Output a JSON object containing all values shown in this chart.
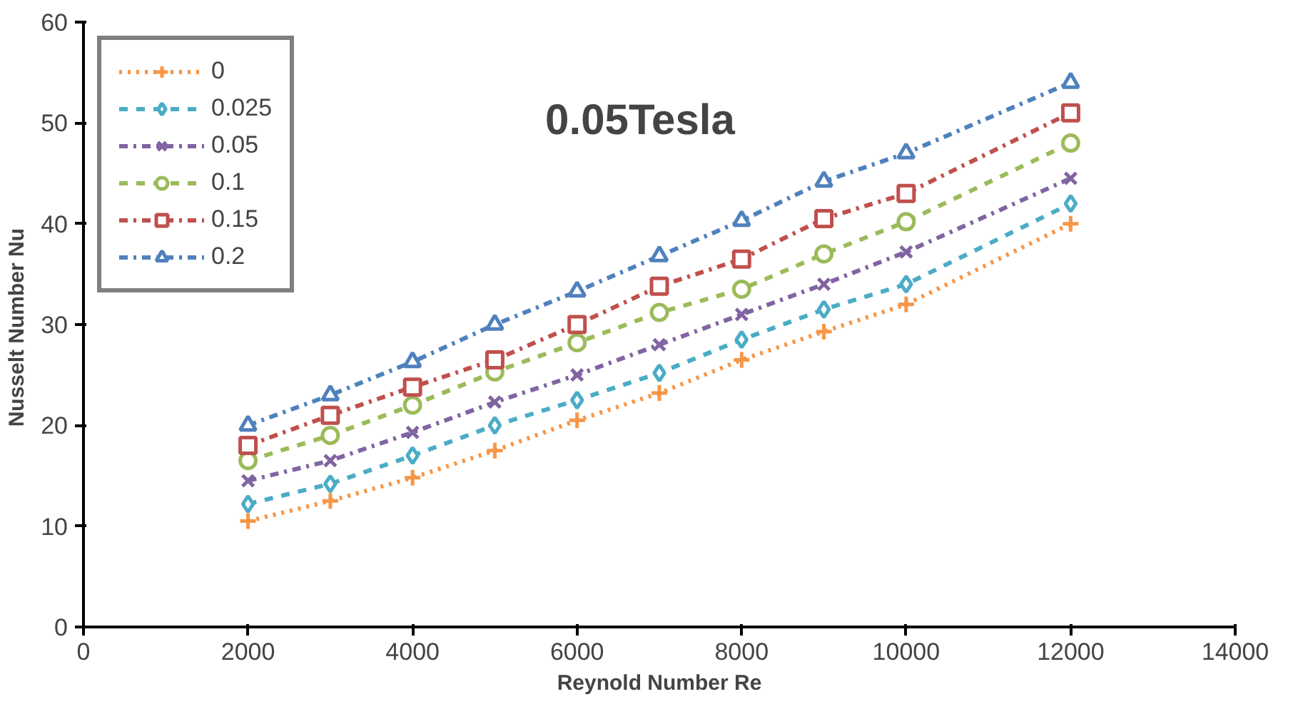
{
  "chart_data": {
    "type": "line",
    "title": "0.05Tesla",
    "xlabel": "Reynold Number Re",
    "ylabel": "Nusselt Number  Nu",
    "x": [
      2000,
      3000,
      4000,
      5000,
      6000,
      7000,
      8000,
      9000,
      10000,
      12000
    ],
    "xlim": [
      0,
      14000
    ],
    "xticks": [
      0,
      2000,
      4000,
      6000,
      8000,
      10000,
      12000,
      14000
    ],
    "ylim": [
      0,
      60
    ],
    "yticks": [
      0,
      10,
      20,
      30,
      40,
      50,
      60
    ],
    "grid": false,
    "legend": "top left",
    "series": [
      {
        "name": "0",
        "color": "#f79646",
        "marker": "cross",
        "line_style": "dotted",
        "values": [
          10.5,
          12.5,
          14.8,
          17.5,
          20.5,
          23.2,
          26.5,
          29.3,
          32,
          40
        ]
      },
      {
        "name": "0.025",
        "color": "#4bacc6",
        "marker": "diamond",
        "line_style": "dashed",
        "values": [
          12.2,
          14.2,
          17,
          20,
          22.5,
          25.2,
          28.5,
          31.5,
          34,
          42
        ]
      },
      {
        "name": "0.05",
        "color": "#8064a2",
        "marker": "x",
        "line_style": "dashdot",
        "values": [
          14.5,
          16.5,
          19.3,
          22.3,
          25,
          28,
          31,
          34,
          37.2,
          44.5
        ]
      },
      {
        "name": "0.1",
        "color": "#9bbb59",
        "marker": "circle",
        "line_style": "dashed",
        "values": [
          16.5,
          19,
          22,
          25.3,
          28.2,
          31.2,
          33.5,
          37,
          40.2,
          48
        ]
      },
      {
        "name": "0.15",
        "color": "#c0504d",
        "marker": "square",
        "line_style": "dashdot",
        "values": [
          18,
          21,
          23.8,
          26.5,
          30,
          33.8,
          36.5,
          40.5,
          43,
          51
        ]
      },
      {
        "name": "0.2",
        "color": "#4f81bd",
        "marker": "triangle",
        "line_style": "dashdot",
        "values": [
          20,
          23,
          26.3,
          30,
          33.3,
          36.8,
          40.3,
          44.2,
          47,
          54
        ]
      }
    ]
  }
}
